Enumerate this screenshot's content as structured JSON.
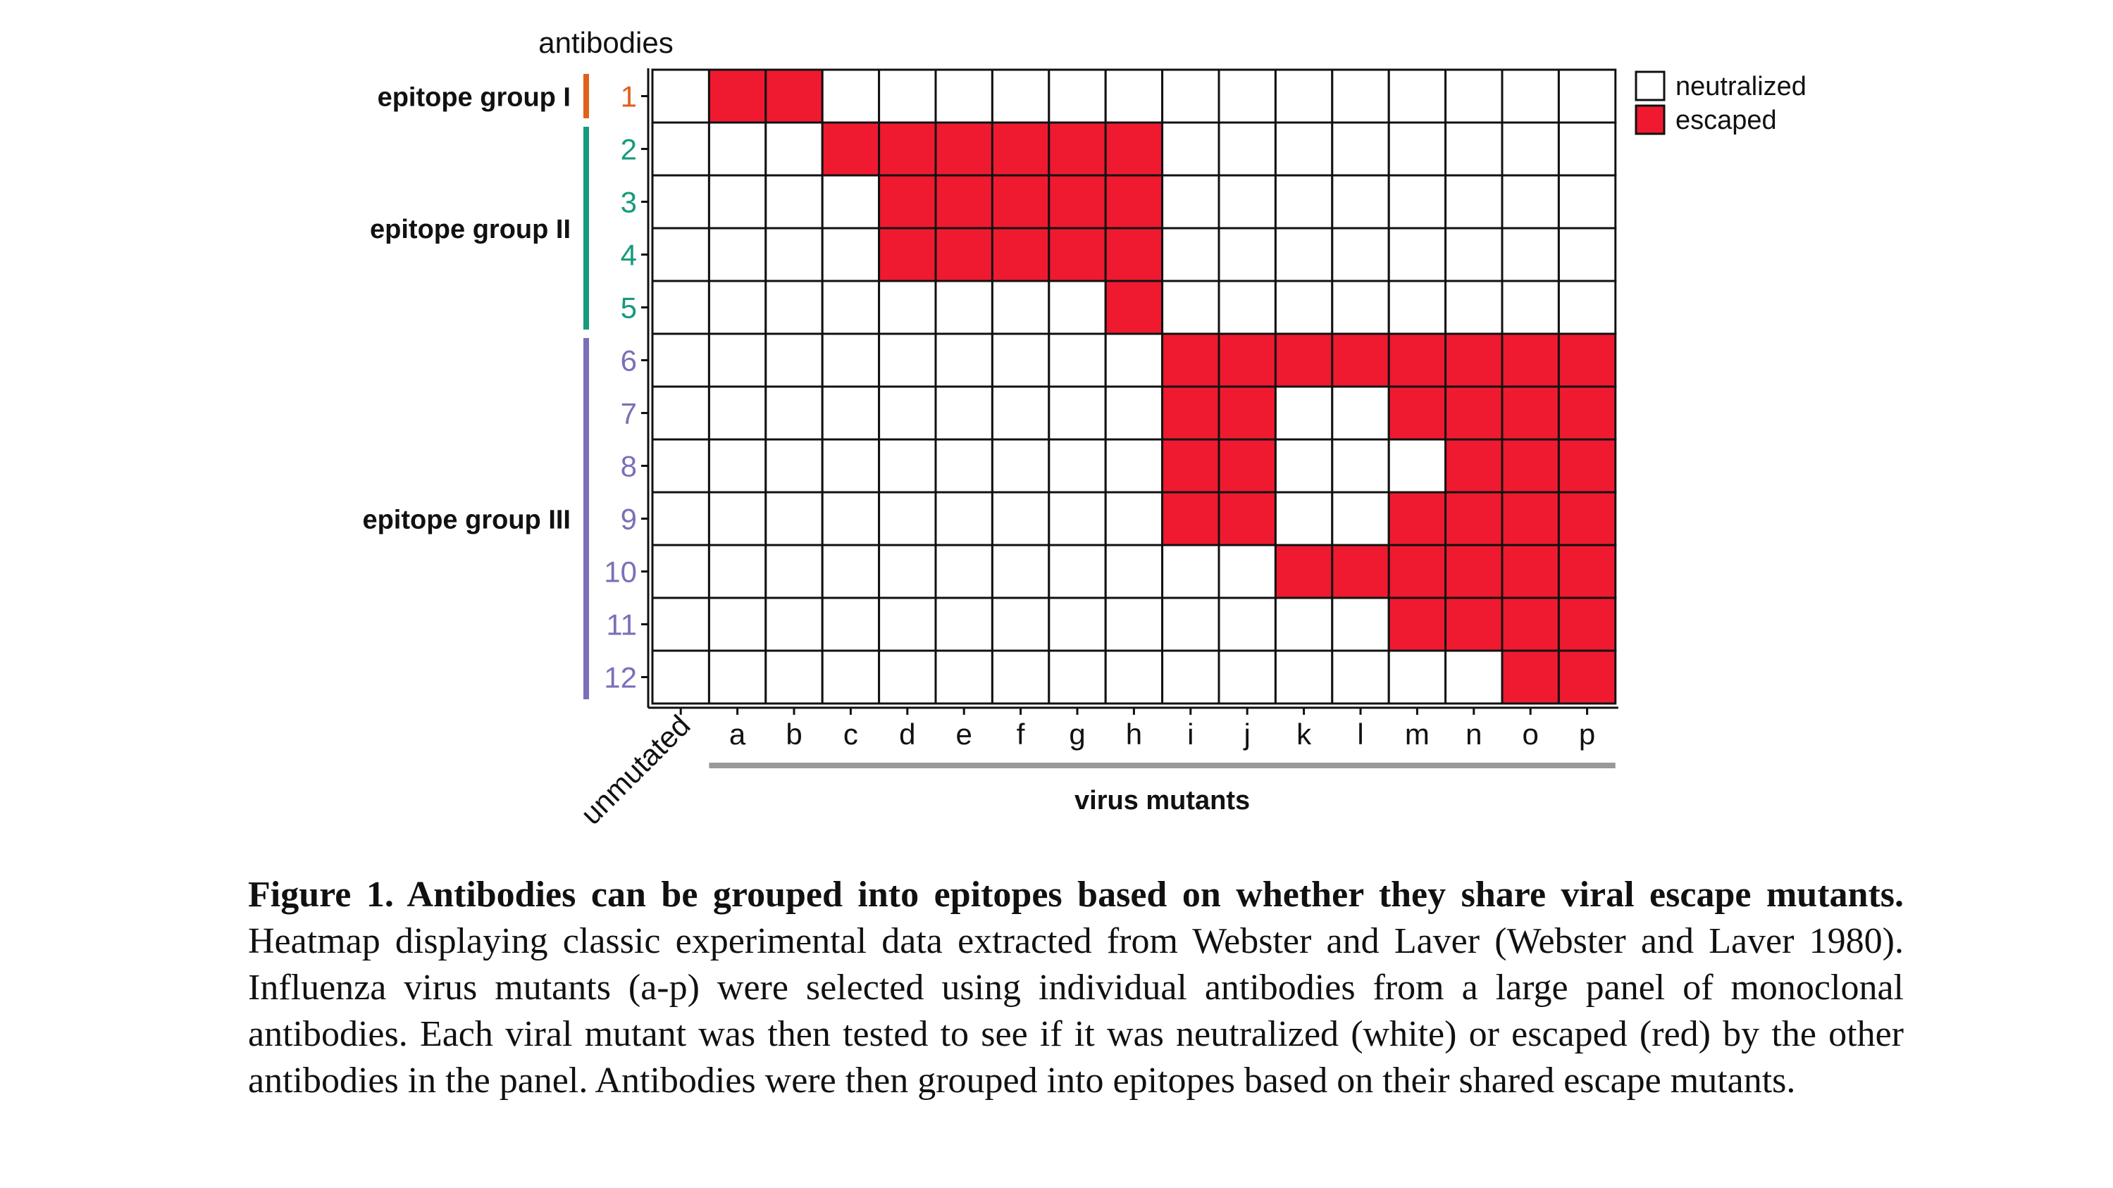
{
  "chart_data": {
    "type": "heatmap",
    "ylabel": "antibodies",
    "xlabel": "virus mutants",
    "unmutated_label": "unmutated",
    "columns": [
      "unmutated",
      "a",
      "b",
      "c",
      "d",
      "e",
      "f",
      "g",
      "h",
      "i",
      "j",
      "k",
      "l",
      "m",
      "n",
      "o",
      "p"
    ],
    "column_tick_labels": [
      "",
      "a",
      "b",
      "c",
      "d",
      "e",
      "f",
      "g",
      "h",
      "i",
      "j",
      "k",
      "l",
      "m",
      "n",
      "o",
      "p"
    ],
    "rows": [
      "1",
      "2",
      "3",
      "4",
      "5",
      "6",
      "7",
      "8",
      "9",
      "10",
      "11",
      "12"
    ],
    "values": [
      [
        0,
        1,
        1,
        0,
        0,
        0,
        0,
        0,
        0,
        0,
        0,
        0,
        0,
        0,
        0,
        0,
        0
      ],
      [
        0,
        0,
        0,
        1,
        1,
        1,
        1,
        1,
        1,
        0,
        0,
        0,
        0,
        0,
        0,
        0,
        0
      ],
      [
        0,
        0,
        0,
        0,
        1,
        1,
        1,
        1,
        1,
        0,
        0,
        0,
        0,
        0,
        0,
        0,
        0
      ],
      [
        0,
        0,
        0,
        0,
        1,
        1,
        1,
        1,
        1,
        0,
        0,
        0,
        0,
        0,
        0,
        0,
        0
      ],
      [
        0,
        0,
        0,
        0,
        0,
        0,
        0,
        0,
        1,
        0,
        0,
        0,
        0,
        0,
        0,
        0,
        0
      ],
      [
        0,
        0,
        0,
        0,
        0,
        0,
        0,
        0,
        0,
        1,
        1,
        1,
        1,
        1,
        1,
        1,
        1
      ],
      [
        0,
        0,
        0,
        0,
        0,
        0,
        0,
        0,
        0,
        1,
        1,
        0,
        0,
        1,
        1,
        1,
        1
      ],
      [
        0,
        0,
        0,
        0,
        0,
        0,
        0,
        0,
        0,
        1,
        1,
        0,
        0,
        0,
        1,
        1,
        1
      ],
      [
        0,
        0,
        0,
        0,
        0,
        0,
        0,
        0,
        0,
        1,
        1,
        0,
        0,
        1,
        1,
        1,
        1
      ],
      [
        0,
        0,
        0,
        0,
        0,
        0,
        0,
        0,
        0,
        0,
        0,
        1,
        1,
        1,
        1,
        1,
        1
      ],
      [
        0,
        0,
        0,
        0,
        0,
        0,
        0,
        0,
        0,
        0,
        0,
        0,
        0,
        1,
        1,
        1,
        1
      ],
      [
        0,
        0,
        0,
        0,
        0,
        0,
        0,
        0,
        0,
        0,
        0,
        0,
        0,
        0,
        0,
        1,
        1
      ]
    ],
    "legend": {
      "position": "right",
      "entries": [
        {
          "label": "neutralized",
          "value": 0,
          "color": "#ffffff"
        },
        {
          "label": "escaped",
          "value": 1,
          "color": "#f01a30"
        }
      ]
    },
    "row_groups": [
      {
        "label": "epitope group I",
        "rows": [
          "1"
        ],
        "color": "#e0601c"
      },
      {
        "label": "epitope group II",
        "rows": [
          "2",
          "3",
          "4",
          "5"
        ],
        "color": "#179a7c"
      },
      {
        "label": "epitope group III",
        "rows": [
          "6",
          "7",
          "8",
          "9",
          "10",
          "11",
          "12"
        ],
        "color": "#7a70b8"
      }
    ],
    "mutant_bracket": {
      "from": "a",
      "to": "p",
      "color": "#999999"
    }
  },
  "caption": {
    "bold": "Figure 1. Antibodies can be grouped into epitopes based on whether they share viral escape mutants.",
    "text": " Heatmap displaying classic experimental data extracted from Webster and Laver (Webster and Laver 1980). Influenza virus mutants (a-p) were selected using individual antibodies from a large panel of monoclonal antibodies. Each viral mutant was then tested to see if it was neutralized (white) or escaped (red) by the other antibodies in the panel. Antibodies were then grouped into epitopes based on their shared escape mutants."
  }
}
